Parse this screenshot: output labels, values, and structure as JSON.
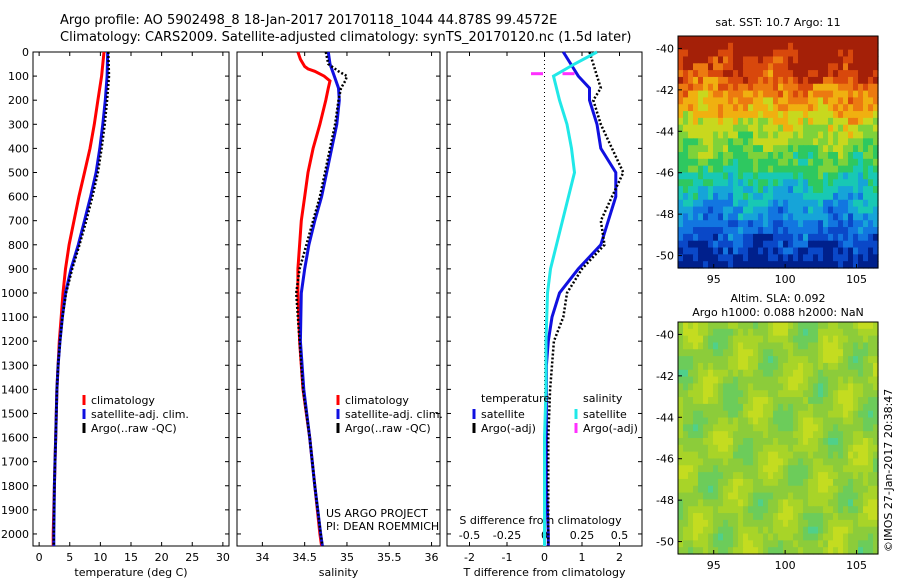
{
  "title": {
    "line1": "Argo profile: AO 5902498_8 18-Jan-2017 20170118_1044 44.878S 99.4572E",
    "line2": "Climatology: CARS2009. Satellite-adjusted climatology: synTS_20170120.nc (1.5d later)"
  },
  "credits": {
    "project": "US ARGO PROJECT",
    "pi": "PI: DEAN ROEMMICH",
    "imos": "©IMOS 27-Jan-2017 20:38:47"
  },
  "colors": {
    "red": "#ff0000",
    "blue": "#1010e0",
    "cyan": "#20e8e8",
    "magenta": "#ff30ff",
    "black": "#000000"
  },
  "chart_data": [
    {
      "type": "line",
      "xlabel": "temperature (deg C)",
      "xlim": [
        -1,
        31
      ],
      "xticks": [
        0,
        5,
        10,
        15,
        20,
        25,
        30
      ],
      "ylim": [
        2050,
        0
      ],
      "yticks": [
        0,
        100,
        200,
        300,
        400,
        500,
        600,
        700,
        800,
        900,
        1000,
        1100,
        1200,
        1300,
        1400,
        1500,
        1600,
        1700,
        1800,
        1900,
        2000
      ],
      "legend": [
        "climatology",
        "satellite-adj. clim.",
        "Argo(..raw -QC)"
      ],
      "series": [
        {
          "name": "climatology",
          "color": "red",
          "depth": [
            0,
            100,
            200,
            300,
            400,
            500,
            600,
            700,
            800,
            900,
            1000,
            1100,
            1200,
            1300,
            1400,
            1500,
            1600,
            1700,
            1800,
            1900,
            2000,
            2050
          ],
          "values": [
            10.6,
            10.2,
            9.6,
            9.0,
            8.3,
            7.4,
            6.5,
            5.7,
            4.9,
            4.3,
            3.9,
            3.6,
            3.3,
            3.1,
            2.9,
            2.8,
            2.7,
            2.6,
            2.5,
            2.4,
            2.3,
            2.3
          ]
        },
        {
          "name": "satellite-adj. clim.",
          "color": "blue",
          "depth": [
            0,
            100,
            200,
            300,
            400,
            500,
            600,
            700,
            800,
            900,
            1000,
            1100,
            1200,
            1300,
            1400,
            1500,
            1600,
            1700,
            1800,
            1900,
            2000,
            2050
          ],
          "values": [
            11.2,
            11.1,
            10.8,
            10.4,
            9.9,
            9.3,
            8.4,
            7.4,
            6.4,
            5.2,
            4.3,
            3.8,
            3.4,
            3.1,
            2.9,
            2.8,
            2.7,
            2.6,
            2.5,
            2.45,
            2.4,
            2.4
          ]
        },
        {
          "name": "Argo(..raw -QC)",
          "color": "black",
          "depth": [
            0,
            100,
            200,
            300,
            400,
            500,
            600,
            700,
            800,
            900,
            1000,
            1100,
            1200,
            1300,
            1400,
            1500,
            1600,
            1700,
            1800,
            1900,
            2000,
            2050
          ],
          "values": [
            11.3,
            11.4,
            11.1,
            10.7,
            10.2,
            9.6,
            8.7,
            7.7,
            6.6,
            5.4,
            4.4,
            3.8,
            3.4,
            3.1,
            2.9,
            2.8,
            2.7,
            2.6,
            2.5,
            2.45,
            2.4,
            2.4
          ]
        }
      ]
    },
    {
      "type": "line",
      "xlabel": "salinity",
      "xlim": [
        33.7,
        36.1
      ],
      "xticks": [
        34,
        34.5,
        35,
        35.5,
        36
      ],
      "ylim": [
        2050,
        0
      ],
      "legend": [
        "climatology",
        "satellite-adj. clim.",
        "Argo(..raw -QC)"
      ],
      "series": [
        {
          "name": "climatology",
          "color": "red",
          "depth": [
            0,
            30,
            60,
            70,
            80,
            100,
            120,
            150,
            200,
            300,
            400,
            500,
            600,
            700,
            800,
            900,
            1000,
            1200,
            1400,
            1600,
            1800,
            2000,
            2050
          ],
          "values": [
            34.42,
            34.45,
            34.5,
            34.54,
            34.62,
            34.73,
            34.8,
            34.78,
            34.75,
            34.68,
            34.6,
            34.54,
            34.5,
            34.46,
            34.44,
            34.42,
            34.42,
            34.44,
            34.48,
            34.56,
            34.62,
            34.68,
            34.7
          ]
        },
        {
          "name": "satellite-adj. clim.",
          "color": "blue",
          "depth": [
            0,
            50,
            100,
            150,
            200,
            300,
            400,
            500,
            600,
            700,
            800,
            900,
            1000,
            1200,
            1400,
            1600,
            1800,
            2000,
            2050
          ],
          "values": [
            34.78,
            34.8,
            34.85,
            34.9,
            34.91,
            34.88,
            34.82,
            34.76,
            34.7,
            34.62,
            34.55,
            34.5,
            34.46,
            34.45,
            34.49,
            34.56,
            34.62,
            34.69,
            34.71
          ]
        },
        {
          "name": "Argo(..raw -QC)",
          "color": "black",
          "depth": [
            0,
            50,
            80,
            100,
            120,
            150,
            200,
            300,
            400,
            500,
            600,
            700,
            800,
            900,
            1000,
            1100,
            1200,
            1300,
            1400,
            1500,
            1600,
            1800,
            2000,
            2050
          ],
          "values": [
            34.75,
            34.78,
            34.9,
            35.0,
            34.98,
            34.93,
            34.9,
            34.86,
            34.8,
            34.74,
            34.68,
            34.6,
            34.52,
            34.44,
            34.4,
            34.42,
            34.44,
            34.46,
            34.48,
            34.52,
            34.56,
            34.62,
            34.69,
            34.71
          ]
        }
      ]
    },
    {
      "type": "line",
      "xlabel": "T difference from climatology",
      "xlabel_top": "S difference from climatology",
      "xlim": [
        -2.6,
        2.6
      ],
      "xticks": [
        -2,
        -1,
        0,
        1,
        2
      ],
      "xlim_s": [
        -0.65,
        0.65
      ],
      "xticks_s": [
        -0.5,
        -0.25,
        0,
        0.25,
        0.5
      ],
      "ylim": [
        2050,
        0
      ],
      "legend_groups": {
        "left": "temperature",
        "right": "salinity"
      },
      "legend": {
        "t_sat": "satellite",
        "t_argo": "Argo(-adj)",
        "s_sat": "satellite",
        "s_argo": "Argo(-adj)"
      },
      "series": [
        {
          "name": "satellite",
          "group": "temperature",
          "color": "blue",
          "depth": [
            0,
            50,
            100,
            150,
            200,
            300,
            400,
            500,
            600,
            700,
            800,
            900,
            1000,
            1100,
            1200,
            1300,
            1400,
            1600,
            1800,
            2000,
            2050
          ],
          "values": [
            0.5,
            0.7,
            0.9,
            1.2,
            1.2,
            1.4,
            1.5,
            1.9,
            1.9,
            1.7,
            1.5,
            0.9,
            0.4,
            0.2,
            0.1,
            0.05,
            0.05,
            0.05,
            0.05,
            0.1,
            0.1
          ]
        },
        {
          "name": "Argo(-adj)",
          "group": "temperature",
          "color": "black",
          "depth": [
            0,
            50,
            100,
            150,
            200,
            300,
            400,
            500,
            600,
            700,
            800,
            900,
            1000,
            1100,
            1200,
            1400,
            1600,
            1800,
            2000,
            2050
          ],
          "values": [
            1.2,
            1.3,
            1.4,
            1.5,
            1.3,
            1.5,
            1.8,
            2.1,
            1.8,
            1.5,
            1.6,
            1.0,
            0.6,
            0.5,
            0.25,
            0.15,
            0.1,
            0.1,
            0.1,
            0.1
          ]
        },
        {
          "name": "satellite",
          "group": "salinity",
          "color": "cyan",
          "depth": [
            0,
            50,
            100,
            150,
            200,
            300,
            400,
            500,
            600,
            700,
            800,
            900,
            1000,
            1200,
            1400,
            1600,
            1800,
            2000,
            2050
          ],
          "values": [
            0.35,
            0.2,
            0.06,
            0.08,
            0.1,
            0.15,
            0.18,
            0.2,
            0.16,
            0.12,
            0.08,
            0.04,
            0.02,
            0.01,
            0.01,
            0.0,
            0.0,
            0.0,
            0.0
          ]
        },
        {
          "name": "Argo(-adj)",
          "group": "salinity",
          "color": "magenta",
          "depth": [
            90,
            90
          ],
          "values": [
            -0.05,
            0.16
          ]
        }
      ]
    },
    {
      "type": "heatmap",
      "title": "sat. SST: 10.7 Argo: 11",
      "xticks": [
        95,
        100,
        105
      ],
      "yticks": [
        -40,
        -42,
        -44,
        -46,
        -48,
        -50
      ],
      "xlim": [
        92.5,
        106.5
      ],
      "ylim": [
        -50.6,
        -39.4
      ]
    },
    {
      "type": "heatmap",
      "title": "Altim. SLA: 0.092",
      "subtitle": "Argo h1000: 0.088 h2000: NaN",
      "xticks": [
        95,
        100,
        105
      ],
      "yticks": [
        -40,
        -42,
        -44,
        -46,
        -48,
        -50
      ],
      "xlim": [
        92.5,
        106.5
      ],
      "ylim": [
        -50.6,
        -39.4
      ]
    }
  ]
}
